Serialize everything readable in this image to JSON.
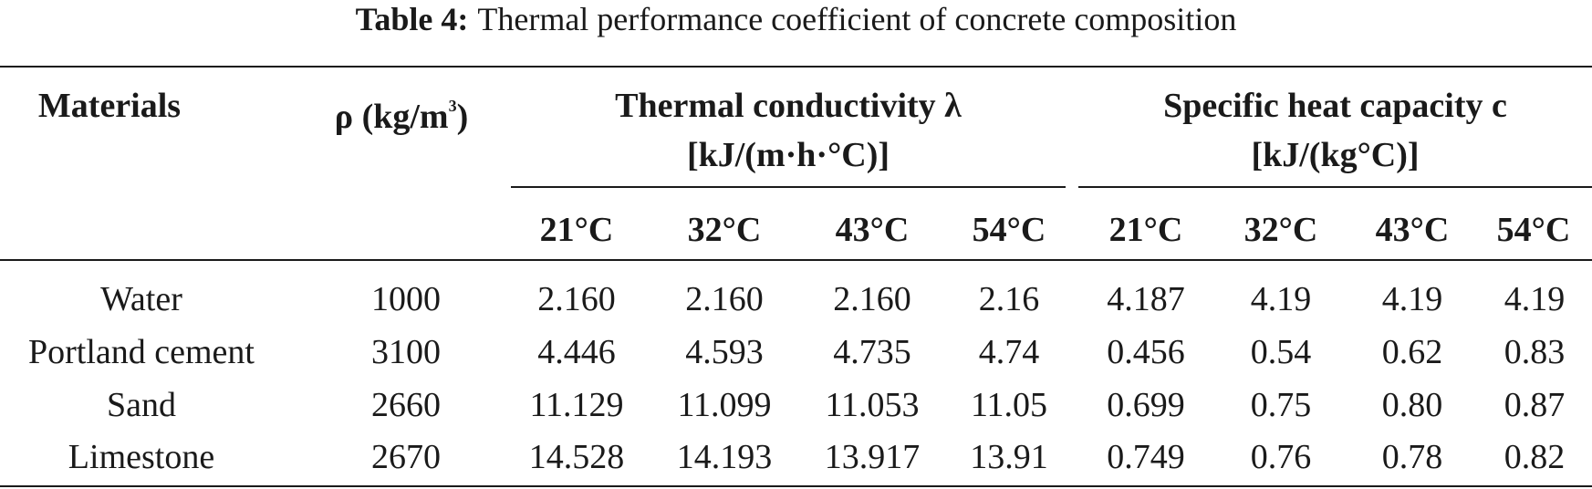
{
  "caption": {
    "label": "Table 4:",
    "text": "Thermal performance coefficient of concrete composition"
  },
  "header": {
    "materials": "Materials",
    "density_prefix": "ρ (kg/m",
    "density_sup": "3",
    "density_suffix": ")",
    "conductivity_title": "Thermal conductivity λ",
    "conductivity_unit": "[kJ/(m·h·°C)]",
    "heat_title": "Specific heat capacity c",
    "heat_unit": "[kJ/(kg°C)]",
    "temps": [
      "21°C",
      "32°C",
      "43°C",
      "54°C",
      "21°C",
      "32°C",
      "43°C",
      "54°C"
    ]
  },
  "rows": [
    {
      "material": "Water",
      "density": "1000",
      "values": [
        "2.160",
        "2.160",
        "2.160",
        "2.16",
        "4.187",
        "4.19",
        "4.19",
        "4.19"
      ]
    },
    {
      "material": "Portland cement",
      "density": "3100",
      "values": [
        "4.446",
        "4.593",
        "4.735",
        "4.74",
        "0.456",
        "0.54",
        "0.62",
        "0.83"
      ]
    },
    {
      "material": "Sand",
      "density": "2660",
      "values": [
        "11.129",
        "11.099",
        "11.053",
        "11.05",
        "0.699",
        "0.75",
        "0.80",
        "0.87"
      ]
    },
    {
      "material": "Limestone",
      "density": "2670",
      "values": [
        "14.528",
        "14.193",
        "13.917",
        "13.91",
        "0.749",
        "0.76",
        "0.78",
        "0.82"
      ]
    }
  ]
}
